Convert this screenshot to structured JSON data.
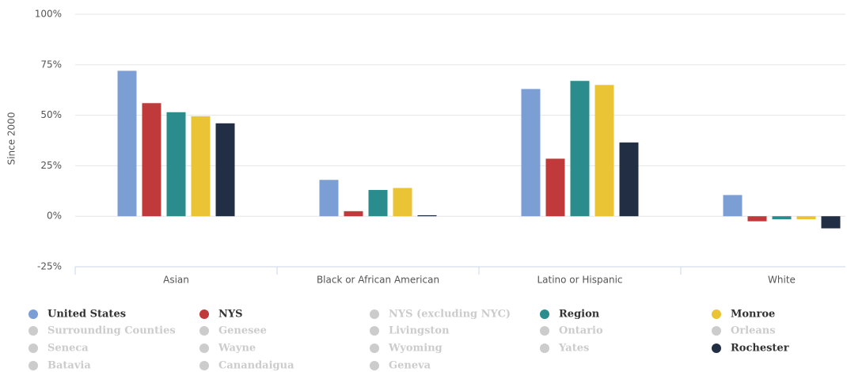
{
  "chart_data": {
    "type": "bar",
    "ylabel": "Since 2000",
    "categories": [
      "Asian",
      "Black or African American",
      "Latino or Hispanic",
      "White"
    ],
    "ylim": [
      -25,
      100
    ],
    "yticks": [
      {
        "value": -25,
        "label": "-25%"
      },
      {
        "value": 0,
        "label": "0%"
      },
      {
        "value": 25,
        "label": "25%"
      },
      {
        "value": 50,
        "label": "50%"
      },
      {
        "value": 75,
        "label": "75%"
      },
      {
        "value": 100,
        "label": "100%"
      }
    ],
    "grid": true,
    "series": [
      {
        "name": "United States",
        "color": "#7b9fd4",
        "visible": true,
        "values": [
          72,
          18,
          63,
          10.5
        ]
      },
      {
        "name": "NYS",
        "color": "#c0393b",
        "visible": true,
        "values": [
          56,
          2.5,
          28.5,
          -2.5
        ]
      },
      {
        "name": "NYS (excluding NYC)",
        "color": "#cccccc",
        "visible": false
      },
      {
        "name": "Region",
        "color": "#2a8c8c",
        "visible": true,
        "values": [
          51.5,
          13,
          67,
          -1.5
        ]
      },
      {
        "name": "Monroe",
        "color": "#eac435",
        "visible": true,
        "values": [
          49.5,
          14,
          65,
          -1.5
        ]
      },
      {
        "name": "Surrounding Counties",
        "color": "#cccccc",
        "visible": false
      },
      {
        "name": "Genesee",
        "color": "#cccccc",
        "visible": false
      },
      {
        "name": "Livingston",
        "color": "#cccccc",
        "visible": false
      },
      {
        "name": "Ontario",
        "color": "#cccccc",
        "visible": false
      },
      {
        "name": "Orleans",
        "color": "#cccccc",
        "visible": false
      },
      {
        "name": "Seneca",
        "color": "#cccccc",
        "visible": false
      },
      {
        "name": "Wayne",
        "color": "#cccccc",
        "visible": false
      },
      {
        "name": "Wyoming",
        "color": "#cccccc",
        "visible": false
      },
      {
        "name": "Yates",
        "color": "#cccccc",
        "visible": false
      },
      {
        "name": "Rochester",
        "color": "#222e44",
        "visible": true,
        "values": [
          46,
          0.5,
          36.5,
          -6
        ]
      },
      {
        "name": "Batavia",
        "color": "#cccccc",
        "visible": false
      },
      {
        "name": "Canandaigua",
        "color": "#cccccc",
        "visible": false
      },
      {
        "name": "Geneva",
        "color": "#cccccc",
        "visible": false
      }
    ]
  }
}
